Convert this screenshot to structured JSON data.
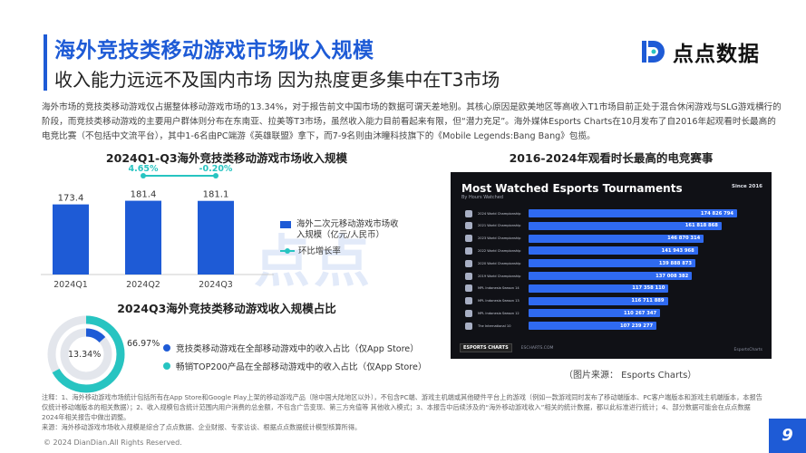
{
  "header": {
    "title": "海外竞技类移动游戏市场收入规模",
    "subtitle": "收入能力远远不及国内市场 因为热度更多集中在T3市场",
    "logo_text": "点点数据"
  },
  "intro_text": "海外市场的竞技类移动游戏仅占据整体移动游戏市场的13.34%，对于报告前文中国市场的数据可谓天差地别。其核心原因是欧美地区等高收入T1市场目前正处于混合休闲游戏与SLG游戏横行的阶段，而竞技类移动游戏的主要用户群体则分布在东南亚、拉美等T3市场，虽然收入能力目前看起来有限，但“潜力充足”。海外媒体Esports Charts在10月发布了自2016年起观看时长最高的电竞比赛（不包括中文流平台），其中1-6名由PC端游《英雄联盟》拿下，而7-9名则由沐瞳科技旗下的《Mobile Legends:Bang Bang》包揽。",
  "revenue_chart": {
    "section_title": "2024Q1-Q3海外竞技类移动游戏市场收入规模",
    "legend_bar": "海外二次元移动游戏市场收入规模（亿元/人民币）",
    "legend_line": "环比增长率",
    "chart_data": {
      "type": "bar",
      "categories": [
        "2024Q1",
        "2024Q2",
        "2024Q3"
      ],
      "values": [
        173.4,
        181.4,
        181.1
      ],
      "value_labels": [
        "173.4",
        "181.4",
        "181.1"
      ],
      "growth": [
        null,
        4.65,
        -0.2
      ],
      "growth_labels": [
        "",
        "4.65%",
        "-0.20%"
      ],
      "ylim": [
        0,
        200
      ],
      "bar_color": "#1e5bd6",
      "line_color": "#27c4c1"
    }
  },
  "share_chart": {
    "section_title": "2024Q3海外竞技类移动游戏收入规模占比",
    "chart_data": {
      "type": "pie",
      "categories": [
        "竞技类移动游戏在全部移动游戏中的收入占比（仅App Store）",
        "畅销TOP200产品在全部移动游戏中的收入占比（仅App Store）"
      ],
      "values": [
        13.34,
        66.97
      ],
      "value_labels": [
        "13.34%",
        "66.97%"
      ],
      "colors": [
        "#1e5bd6",
        "#27c4c1"
      ]
    }
  },
  "esports_section": {
    "section_title": "2016-2024年观看时长最高的电竞赛事",
    "image_title": "Most Watched Esports Tournaments",
    "image_subtitle": "By Hours Watched",
    "since_label": "Since 2016",
    "chart_data": {
      "type": "bar",
      "categories": [
        "2024 World Championship",
        "2021 World Championship",
        "2023 World Championship",
        "2022 World Championship",
        "2020 World Championship",
        "2019 World Championship",
        "MPL Indonesia Season 14",
        "MPL Indonesia Season 13",
        "MPL Indonesia Season 12",
        "The International 10"
      ],
      "values": [
        174826794,
        161818868,
        146870314,
        141943968,
        139888873,
        137008382,
        117358110,
        116711889,
        110267347,
        107239277
      ],
      "value_labels": [
        "174 826 794",
        "161 818 868",
        "146 870 314",
        "141 943 968",
        "139 888 873",
        "137 008 382",
        "117 358 110",
        "116 711 889",
        "110 267 347",
        "107 239 277"
      ]
    },
    "footer_logo": "ESPORTS CHARTS",
    "footer_link": "ESCHARTS.COM",
    "footer_right": "EsportsCharts",
    "source": "（图片来源： Esports Charts）"
  },
  "notes": [
    "注释：1、海外移动游戏市场统计包括所有在App Store和Google Play上架的移动游戏产品（除中国大陆地区以外），不包含PC端、游戏主机端或其他硬件平台上的游戏（例如一款游戏同时发布了移动端版本、PC客户端版本和游戏主机端版本，本报告仅统计移动端版本的相关数据）；2、收入规模包含统计范围内用户消费的总金额，不包含广告变现、第三方充值等 其他收入模式；3、本报告中后续涉及的“海外移动游戏收入”相关的统计数据，都以此标准进行统计；4、部分数据可能会在点点数据2024年相关报告中做出调整。",
    "来源：海外移动游戏市场收入规模是综合了点点数据、企业财报、专家访谈、根据点点数据统计模型核算所得。"
  ],
  "footer": {
    "copyright": "© 2024 DianDian.All Rights Reserved.",
    "page_number": "9"
  },
  "watermark_text": "点点"
}
